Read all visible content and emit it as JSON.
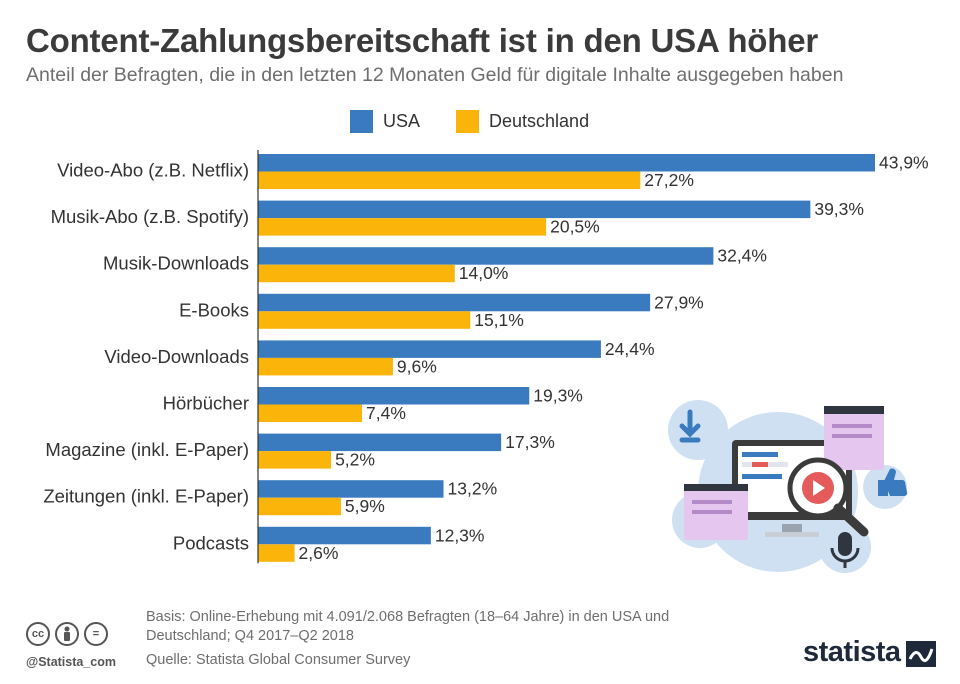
{
  "header": {
    "title": "Content-Zahlungsbereitschaft ist in den USA höher",
    "subtitle": "Anteil der Befragten, die in den letzten 12 Monaten Geld für digitale Inhalte ausgegeben haben"
  },
  "legend": {
    "usa": "USA",
    "de": "Deutschland"
  },
  "colors": {
    "usa": "#3a7bbf",
    "de": "#fbb40a",
    "axis": "#333333"
  },
  "chart_data": {
    "type": "bar",
    "orientation": "horizontal",
    "title": "Content-Zahlungsbereitschaft ist in den USA höher",
    "categories": [
      "Video-Abo (z.B. Netflix)",
      "Musik-Abo (z.B. Spotify)",
      "Musik-Downloads",
      "E-Books",
      "Video-Downloads",
      "Hörbücher",
      "Magazine (inkl. E-Paper)",
      "Zeitungen (inkl. E-Paper)",
      "Podcasts"
    ],
    "series": [
      {
        "name": "USA",
        "values": [
          43.9,
          39.3,
          32.4,
          27.9,
          24.4,
          19.3,
          17.3,
          13.2,
          12.3
        ],
        "labels": [
          "43,9%",
          "39,3%",
          "32,4%",
          "27,9%",
          "24,4%",
          "19,3%",
          "17,3%",
          "13,2%",
          "12,3%"
        ]
      },
      {
        "name": "Deutschland",
        "values": [
          27.2,
          20.5,
          14.0,
          15.1,
          9.6,
          7.4,
          5.2,
          5.9,
          2.6
        ],
        "labels": [
          "27,2%",
          "20,5%",
          "14,0%",
          "15,1%",
          "9,6%",
          "7,4%",
          "5,2%",
          "5,9%",
          "2,6%"
        ]
      }
    ],
    "xlim": [
      0,
      43.9
    ],
    "unit": "%"
  },
  "footer": {
    "basis": "Basis: Online-Erhebung mit 4.091/2.068 Befragten (18–64 Jahre) in den USA und Deutschland; Q4 2017–Q2 2018",
    "source": "Quelle: Statista Global Consumer Survey",
    "handle": "@Statista_com",
    "brand": "statista",
    "cc_icons": [
      "cc",
      "by",
      "="
    ]
  }
}
